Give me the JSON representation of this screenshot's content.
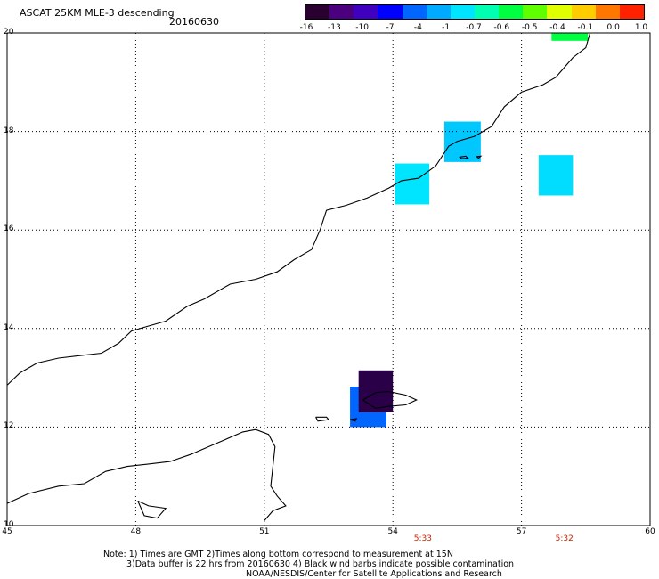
{
  "header": {
    "title": "ASCAT 25KM MLE-3 descending",
    "date": "20160630"
  },
  "colorbar": {
    "labels": [
      "-16",
      "-13",
      "-10",
      "-7",
      "-4",
      "-1",
      "-0.7",
      "-0.6",
      "-0.5",
      "-0.4",
      "-0.1",
      "0.0",
      "1.0"
    ],
    "colors": [
      "#2a0030",
      "#4b0080",
      "#4000c0",
      "#0000ff",
      "#0066ff",
      "#00aaff",
      "#00e5ff",
      "#00ffb0",
      "#00ff40",
      "#60ff00",
      "#e0ff00",
      "#ffcc00",
      "#ff7700",
      "#ff2200"
    ]
  },
  "axes": {
    "lon_min": 45,
    "lon_max": 60,
    "lat_min": 10,
    "lat_max": 20,
    "x_ticks": [
      "45",
      "48",
      "51",
      "54",
      "57",
      "60"
    ],
    "y_ticks": [
      "20",
      "18",
      "16",
      "14",
      "12",
      "10"
    ]
  },
  "pass_times": [
    {
      "lon": 54.7,
      "label": "5:33"
    },
    {
      "lon": 58.0,
      "label": "5:32"
    }
  ],
  "cells": [
    {
      "lon0": 53.0,
      "lat0": 12.0,
      "lon1": 53.85,
      "lat1": 12.82,
      "color": "#0066ff"
    },
    {
      "lon0": 53.2,
      "lat0": 12.3,
      "lon1": 54.0,
      "lat1": 13.15,
      "color": "#2a0048"
    },
    {
      "lon0": 54.05,
      "lat0": 16.52,
      "lon1": 54.85,
      "lat1": 17.35,
      "color": "#00e5ff"
    },
    {
      "lon0": 55.2,
      "lat0": 17.38,
      "lon1": 56.05,
      "lat1": 18.2,
      "color": "#00c8ff"
    },
    {
      "lon0": 57.4,
      "lat0": 16.7,
      "lon1": 58.2,
      "lat1": 17.52,
      "color": "#00ddff"
    },
    {
      "lon0": 57.7,
      "lat0": 19.84,
      "lon1": 58.55,
      "lat1": 20.0,
      "color": "#00ff40"
    }
  ],
  "coastline": {
    "arabia": [
      [
        45,
        12.85
      ],
      [
        45.3,
        13.1
      ],
      [
        45.7,
        13.3
      ],
      [
        46.2,
        13.4
      ],
      [
        46.7,
        13.45
      ],
      [
        47.2,
        13.5
      ],
      [
        47.6,
        13.7
      ],
      [
        47.9,
        13.95
      ],
      [
        48.3,
        14.05
      ],
      [
        48.7,
        14.15
      ],
      [
        49.2,
        14.45
      ],
      [
        49.6,
        14.6
      ],
      [
        50.2,
        14.9
      ],
      [
        50.8,
        15.0
      ],
      [
        51.3,
        15.15
      ],
      [
        51.7,
        15.4
      ],
      [
        52.1,
        15.6
      ],
      [
        52.3,
        16.0
      ],
      [
        52.45,
        16.4
      ],
      [
        52.9,
        16.5
      ],
      [
        53.4,
        16.65
      ],
      [
        53.9,
        16.85
      ],
      [
        54.2,
        17.0
      ],
      [
        54.6,
        17.05
      ],
      [
        55.0,
        17.3
      ],
      [
        55.3,
        17.7
      ],
      [
        55.5,
        17.8
      ],
      [
        55.9,
        17.9
      ],
      [
        56.3,
        18.1
      ],
      [
        56.6,
        18.5
      ],
      [
        57.0,
        18.8
      ],
      [
        57.5,
        18.95
      ],
      [
        57.8,
        19.1
      ],
      [
        58.2,
        19.5
      ],
      [
        58.5,
        19.7
      ],
      [
        58.6,
        20.0
      ]
    ],
    "somalia": [
      [
        45,
        10.45
      ],
      [
        45.5,
        10.65
      ],
      [
        46.2,
        10.8
      ],
      [
        46.8,
        10.85
      ],
      [
        47.3,
        11.1
      ],
      [
        47.8,
        11.2
      ],
      [
        48.3,
        11.25
      ],
      [
        48.8,
        11.3
      ],
      [
        49.3,
        11.45
      ],
      [
        49.7,
        11.6
      ],
      [
        50.1,
        11.75
      ],
      [
        50.5,
        11.9
      ],
      [
        50.8,
        11.95
      ],
      [
        51.1,
        11.85
      ],
      [
        51.25,
        11.6
      ],
      [
        51.2,
        11.2
      ],
      [
        51.15,
        10.8
      ],
      [
        51.3,
        10.6
      ],
      [
        51.5,
        10.4
      ],
      [
        51.2,
        10.3
      ],
      [
        51.0,
        10.1
      ]
    ],
    "socotra": [
      [
        53.3,
        12.55
      ],
      [
        53.6,
        12.7
      ],
      [
        53.9,
        12.72
      ],
      [
        54.3,
        12.65
      ],
      [
        54.55,
        12.55
      ],
      [
        54.3,
        12.45
      ],
      [
        53.9,
        12.42
      ],
      [
        53.6,
        12.38
      ],
      [
        53.3,
        12.55
      ]
    ],
    "abdalkuri": [
      [
        52.2,
        12.2
      ],
      [
        52.45,
        12.2
      ],
      [
        52.5,
        12.15
      ],
      [
        52.25,
        12.12
      ],
      [
        52.2,
        12.2
      ]
    ],
    "samha": [
      [
        53.0,
        12.15
      ],
      [
        53.15,
        12.17
      ],
      [
        53.12,
        12.12
      ],
      [
        53.0,
        12.15
      ]
    ],
    "kuria": [
      [
        55.55,
        17.48
      ],
      [
        55.7,
        17.5
      ],
      [
        55.75,
        17.46
      ],
      [
        55.6,
        17.45
      ],
      [
        55.55,
        17.48
      ]
    ],
    "kuria2": [
      [
        55.95,
        17.49
      ],
      [
        56.05,
        17.5
      ],
      [
        56.0,
        17.46
      ],
      [
        55.95,
        17.49
      ]
    ],
    "islet": [
      [
        48.05,
        10.5
      ],
      [
        48.3,
        10.4
      ],
      [
        48.7,
        10.35
      ],
      [
        48.5,
        10.15
      ],
      [
        48.2,
        10.2
      ],
      [
        48.05,
        10.5
      ]
    ]
  },
  "notes": {
    "line1": "Note: 1) Times are GMT 2)Times along bottom correspond to measurement at 15N",
    "line2": "3)Data buffer is 22 hrs from 20160630 4) Black wind barbs indicate possible contamination",
    "line3": "NOAA/NESDIS/Center for Satellite Applications and Research"
  }
}
